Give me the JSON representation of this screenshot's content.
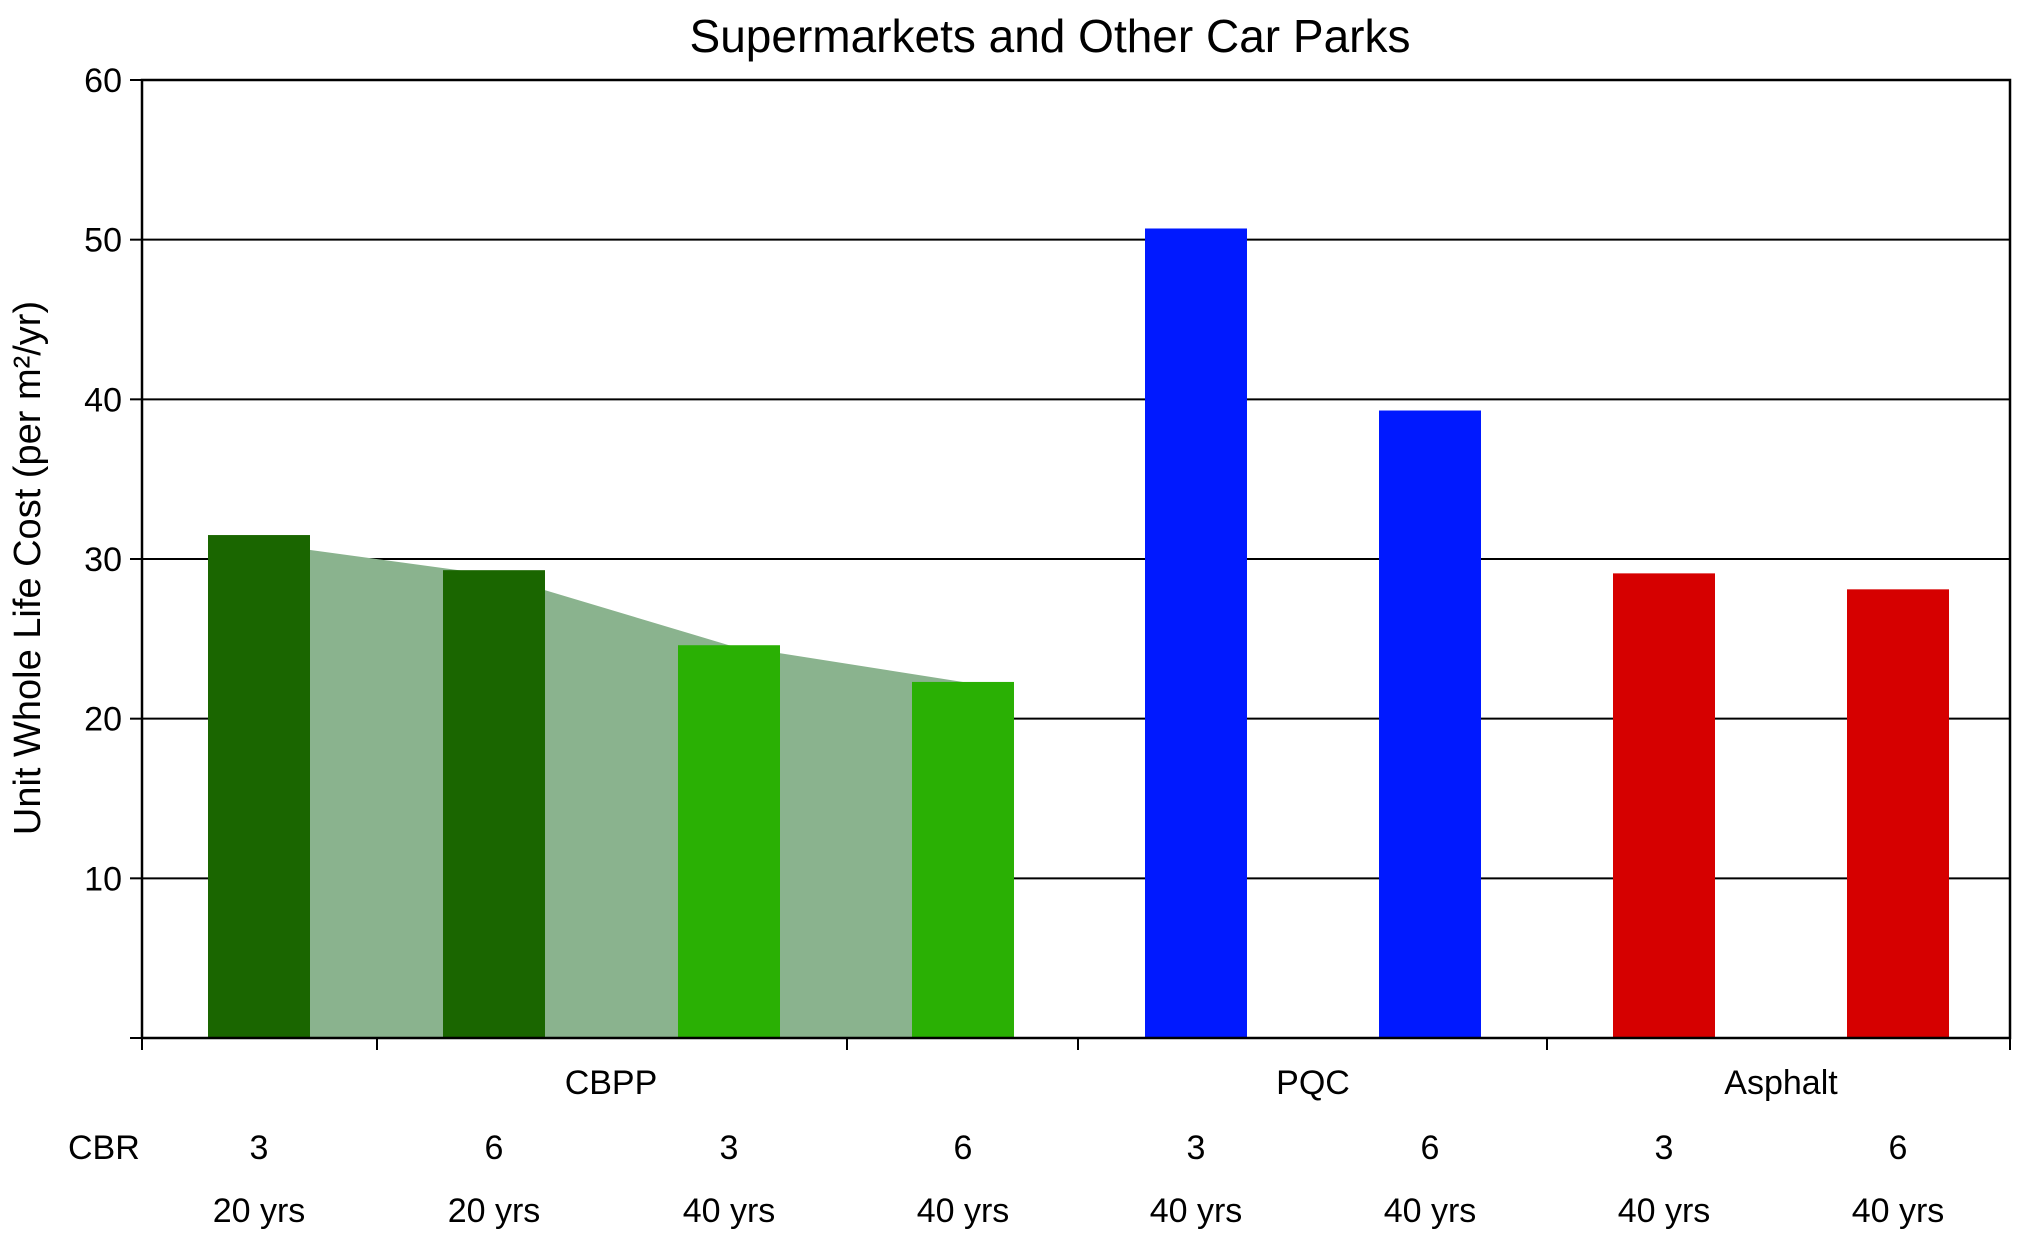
{
  "chart_data": {
    "type": "bar",
    "title": "Supermarkets and Other Car Parks",
    "ylabel": "Unit Whole Life Cost (per m²/yr)",
    "xlabel": "",
    "ylim": [
      0,
      60
    ],
    "yticks": [
      10,
      20,
      30,
      40,
      50,
      60
    ],
    "grid": true,
    "legend": "none",
    "groups": [
      {
        "label": "CBPP",
        "count": 4
      },
      {
        "label": "PQC",
        "count": 2
      },
      {
        "label": "Asphalt",
        "count": 2
      }
    ],
    "row_header": "CBR",
    "bars": [
      {
        "group": "CBPP",
        "cbr": "3",
        "life": "20 yrs",
        "value": 31.5,
        "color": "#1a6600"
      },
      {
        "group": "CBPP",
        "cbr": "6",
        "life": "20 yrs",
        "value": 29.3,
        "color": "#1a6600"
      },
      {
        "group": "CBPP",
        "cbr": "3",
        "life": "40 yrs",
        "value": 24.6,
        "color": "#2ab004"
      },
      {
        "group": "CBPP",
        "cbr": "6",
        "life": "40 yrs",
        "value": 22.3,
        "color": "#2ab004"
      },
      {
        "group": "PQC",
        "cbr": "3",
        "life": "40 yrs",
        "value": 50.7,
        "color": "#0019ff"
      },
      {
        "group": "PQC",
        "cbr": "6",
        "life": "40 yrs",
        "value": 39.3,
        "color": "#0019ff"
      },
      {
        "group": "Asphalt",
        "cbr": "3",
        "life": "40 yrs",
        "value": 29.1,
        "color": "#d60000"
      },
      {
        "group": "Asphalt",
        "cbr": "6",
        "life": "40 yrs",
        "value": 28.1,
        "color": "#d60000"
      }
    ],
    "area": {
      "values": [
        31.0,
        29.0,
        24.6,
        22.3
      ],
      "color": "#8ab38e"
    }
  }
}
